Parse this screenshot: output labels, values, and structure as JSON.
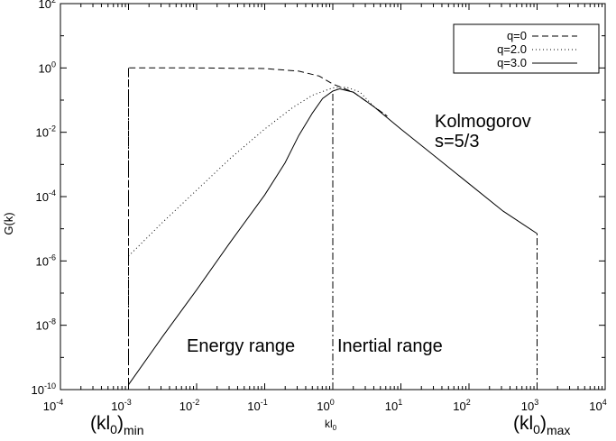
{
  "chart_data": {
    "type": "line",
    "title": "",
    "ylabel": "G(k)",
    "xscale": "log",
    "yscale": "log",
    "xlim_exp": [
      -4,
      4
    ],
    "ylim_exp": [
      -10,
      2
    ],
    "x_ticks": [
      {
        "base": "10",
        "exp": "-4"
      },
      {
        "base": "10",
        "exp": "-3"
      },
      {
        "base": "10",
        "exp": "-2"
      },
      {
        "base": "10",
        "exp": "-1"
      },
      {
        "base": "10",
        "exp": "0"
      },
      {
        "base": "10",
        "exp": "1"
      },
      {
        "base": "10",
        "exp": "2"
      },
      {
        "base": "10",
        "exp": "3"
      },
      {
        "base": "10",
        "exp": "4"
      }
    ],
    "y_ticks": [
      {
        "base": "10",
        "exp": "-10"
      },
      {
        "base": "10",
        "exp": "-8"
      },
      {
        "base": "10",
        "exp": "-6"
      },
      {
        "base": "10",
        "exp": "-4"
      },
      {
        "base": "10",
        "exp": "-2"
      },
      {
        "base": "10",
        "exp": "0"
      },
      {
        "base": "10",
        "exp": "2"
      }
    ],
    "x_special_labels": {
      "min": {
        "main": "(kl",
        "sub": "0",
        "close": ")",
        "subscript": "min"
      },
      "mid": {
        "main": "kl",
        "sub": "0"
      },
      "max": {
        "main": "(kl",
        "sub": "0",
        "close": ")",
        "subscript": "max"
      }
    },
    "legend": {
      "position": "top-right",
      "entries": [
        {
          "label": "q=0",
          "style": "dashed"
        },
        {
          "label": "q=2.0",
          "style": "dotted"
        },
        {
          "label": "q=3.0",
          "style": "solid"
        }
      ]
    },
    "series": [
      {
        "name": "q=0",
        "style": "dashed",
        "points_log10": [
          [
            -3,
            -9.85
          ],
          [
            -3,
            0
          ],
          [
            -2,
            0
          ],
          [
            -1,
            -0.02
          ],
          [
            -0.5,
            -0.1
          ],
          [
            -0.2,
            -0.25
          ],
          [
            0,
            -0.5
          ],
          [
            0.3,
            -0.75
          ],
          [
            0.6,
            -1.2
          ],
          [
            0.8,
            -1.5
          ]
        ]
      },
      {
        "name": "q=2.0",
        "style": "dotted",
        "points_log10": [
          [
            -3,
            -5.85
          ],
          [
            -2.5,
            -4.8
          ],
          [
            -2,
            -3.8
          ],
          [
            -1.5,
            -2.8
          ],
          [
            -1,
            -1.9
          ],
          [
            -0.6,
            -1.25
          ],
          [
            -0.3,
            -0.85
          ],
          [
            0,
            -0.62
          ],
          [
            0.2,
            -0.6
          ],
          [
            0.4,
            -0.75
          ],
          [
            0.6,
            -1.2
          ],
          [
            0.8,
            -1.5
          ]
        ]
      },
      {
        "name": "q=3.0",
        "style": "solid",
        "points_log10": [
          [
            -3,
            -9.85
          ],
          [
            -2.5,
            -8.35
          ],
          [
            -2,
            -6.9
          ],
          [
            -1.5,
            -5.4
          ],
          [
            -1,
            -3.95
          ],
          [
            -0.7,
            -2.95
          ],
          [
            -0.5,
            -2.1
          ],
          [
            -0.3,
            -1.4
          ],
          [
            -0.15,
            -0.95
          ],
          [
            0,
            -0.72
          ],
          [
            0.1,
            -0.65
          ],
          [
            0.3,
            -0.75
          ],
          [
            0.6,
            -1.2
          ],
          [
            1,
            -1.9
          ],
          [
            1.5,
            -2.75
          ],
          [
            2,
            -3.6
          ],
          [
            2.5,
            -4.45
          ],
          [
            3,
            -5.15
          ]
        ]
      }
    ],
    "vertical_lines_log10": [
      -3,
      0,
      3
    ],
    "vertical_line_style": "dash-dot",
    "annotations": {
      "kolmogorov_line1": "Kolmogorov",
      "kolmogorov_line2": "s=5/3",
      "energy_range": "Energy range",
      "inertial_range": "Inertial range"
    }
  }
}
